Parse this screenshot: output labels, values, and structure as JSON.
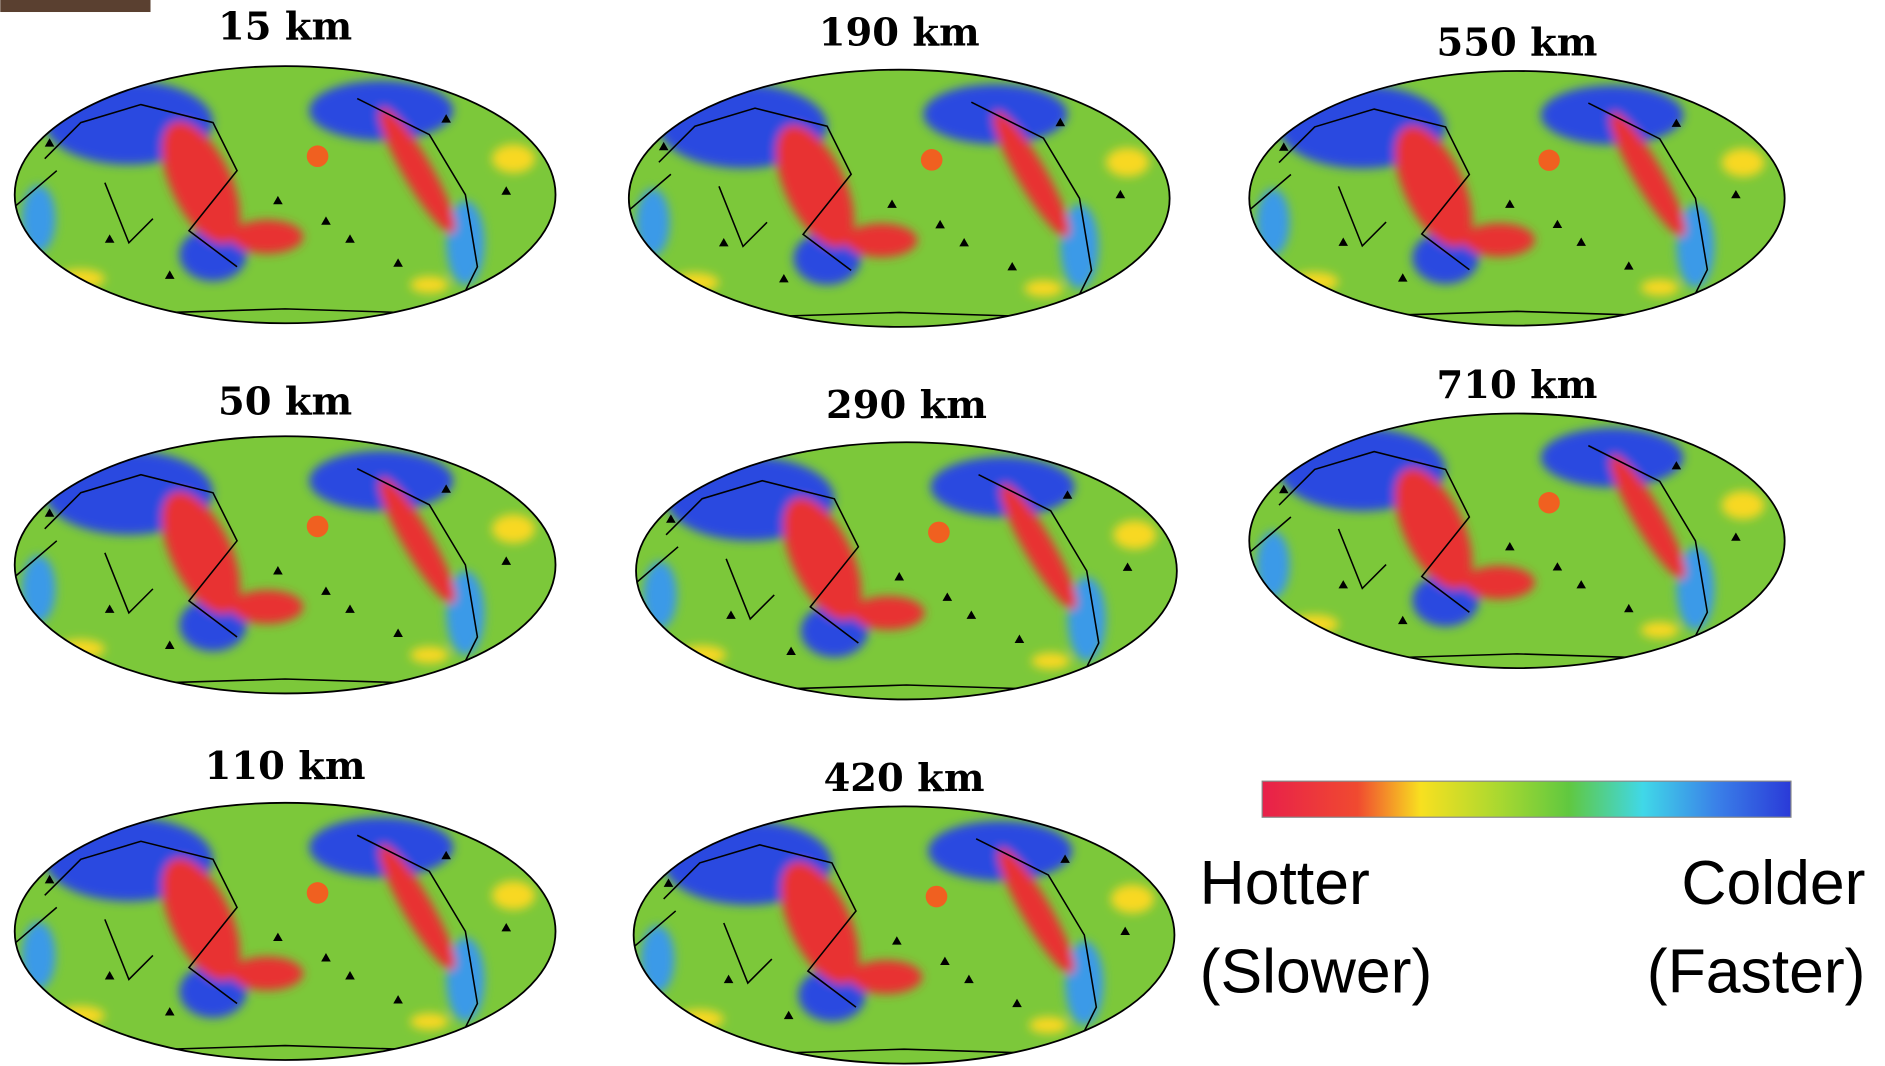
{
  "panels": [
    {
      "label": "15 km"
    },
    {
      "label": "50 km"
    },
    {
      "label": "110 km"
    },
    {
      "label": "190 km"
    },
    {
      "label": "290 km"
    },
    {
      "label": "420 km"
    },
    {
      "label": "550 km"
    },
    {
      "label": "710 km"
    }
  ],
  "legend": {
    "left": [
      "Hotter",
      "(Slower)"
    ],
    "right": [
      "Colder",
      "(Faster)"
    ]
  }
}
